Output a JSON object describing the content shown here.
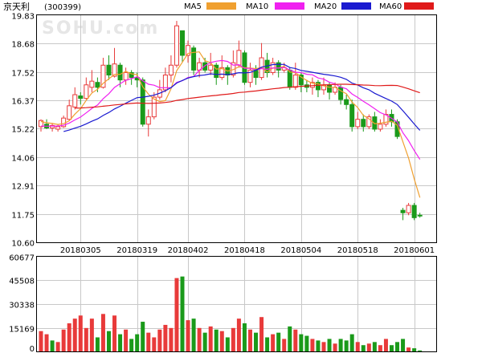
{
  "stock": {
    "name": "京天利",
    "code": "(300399)"
  },
  "watermark": "SOHU.com",
  "colors": {
    "up": "#e83a3a",
    "down": "#1a9a1a",
    "ma5": "#f0a030",
    "ma10": "#f020f0",
    "ma20": "#1a1ad0",
    "ma60": "#e01a1a",
    "grid": "#c8c8c8",
    "axis": "#000000"
  },
  "legend": [
    {
      "label": "MA5",
      "color": "#f0a030"
    },
    {
      "label": "MA10",
      "color": "#f020f0"
    },
    {
      "label": "MA20",
      "color": "#1a1ad0"
    },
    {
      "label": "MA60",
      "color": "#e01a1a"
    }
  ],
  "chart_data": [
    {
      "type": "candlestick",
      "title": "京天利 (300399)",
      "yticks": [
        "19.83",
        "18.68",
        "17.52",
        "16.37",
        "15.22",
        "14.06",
        "12.91",
        "11.75",
        "10.60"
      ],
      "ylim": [
        10.6,
        19.83
      ],
      "xticks": [
        {
          "label": "20180305",
          "index": 7
        },
        {
          "label": "20180319",
          "index": 17
        },
        {
          "label": "20180402",
          "index": 26
        },
        {
          "label": "20180418",
          "index": 36
        },
        {
          "label": "20180504",
          "index": 46
        },
        {
          "label": "20180518",
          "index": 56
        },
        {
          "label": "20180601",
          "index": 66
        }
      ],
      "grid": true,
      "candles": [
        [
          15.3,
          15.55,
          15.1,
          15.6
        ],
        [
          15.4,
          15.25,
          15.2,
          15.6
        ],
        [
          15.25,
          15.35,
          15.1,
          15.45
        ],
        [
          15.2,
          15.3,
          15.1,
          15.4
        ],
        [
          15.3,
          15.65,
          15.25,
          15.75
        ],
        [
          15.6,
          16.15,
          15.55,
          16.4
        ],
        [
          16.1,
          16.6,
          16.0,
          16.9
        ],
        [
          16.55,
          16.45,
          16.2,
          16.7
        ],
        [
          16.45,
          17.0,
          16.4,
          17.3
        ],
        [
          16.9,
          17.15,
          16.7,
          17.6
        ],
        [
          17.1,
          16.9,
          16.7,
          17.3
        ],
        [
          16.9,
          17.8,
          16.85,
          18.1
        ],
        [
          17.8,
          17.4,
          17.2,
          18.2
        ],
        [
          17.35,
          17.85,
          17.3,
          18.5
        ],
        [
          17.8,
          17.2,
          16.9,
          17.9
        ],
        [
          17.2,
          17.5,
          17.0,
          17.7
        ],
        [
          17.5,
          17.3,
          17.0,
          17.6
        ],
        [
          17.3,
          17.2,
          16.9,
          17.5
        ],
        [
          17.2,
          15.4,
          15.3,
          17.3
        ],
        [
          15.4,
          15.7,
          14.9,
          16.0
        ],
        [
          15.7,
          16.5,
          15.6,
          16.7
        ],
        [
          16.5,
          16.8,
          16.4,
          17.2
        ],
        [
          16.8,
          17.4,
          16.7,
          17.7
        ],
        [
          17.4,
          17.8,
          17.1,
          18.2
        ],
        [
          17.8,
          19.4,
          17.7,
          19.6
        ],
        [
          19.2,
          18.2,
          17.9,
          19.2
        ],
        [
          18.2,
          18.6,
          17.9,
          18.8
        ],
        [
          18.5,
          17.6,
          17.4,
          18.6
        ],
        [
          17.6,
          17.9,
          17.3,
          18.1
        ],
        [
          17.9,
          17.6,
          17.5,
          18.1
        ],
        [
          17.6,
          17.8,
          17.4,
          18.3
        ],
        [
          17.8,
          17.3,
          17.0,
          17.9
        ],
        [
          17.3,
          17.7,
          17.2,
          18.2
        ],
        [
          17.7,
          17.4,
          17.0,
          17.8
        ],
        [
          17.4,
          17.9,
          17.3,
          18.4
        ],
        [
          17.8,
          18.4,
          17.7,
          18.8
        ],
        [
          18.3,
          17.1,
          17.0,
          18.4
        ],
        [
          17.1,
          17.6,
          16.9,
          17.9
        ],
        [
          17.6,
          17.3,
          17.0,
          17.8
        ],
        [
          17.3,
          18.1,
          17.2,
          18.7
        ],
        [
          18.0,
          17.5,
          17.3,
          18.3
        ],
        [
          17.5,
          17.9,
          17.4,
          18.1
        ],
        [
          17.9,
          17.6,
          17.3,
          18.0
        ],
        [
          17.6,
          17.7,
          17.5,
          17.9
        ],
        [
          17.6,
          16.9,
          16.8,
          17.7
        ],
        [
          16.9,
          17.4,
          16.8,
          17.9
        ],
        [
          17.4,
          17.0,
          16.7,
          17.5
        ],
        [
          17.0,
          16.9,
          16.7,
          17.2
        ],
        [
          16.9,
          17.1,
          16.6,
          17.3
        ],
        [
          17.1,
          16.8,
          16.5,
          17.2
        ],
        [
          16.8,
          17.0,
          16.6,
          17.3
        ],
        [
          17.0,
          16.7,
          16.4,
          17.1
        ],
        [
          16.7,
          16.9,
          16.6,
          17.1
        ],
        [
          16.9,
          16.4,
          16.2,
          17.0
        ],
        [
          16.4,
          16.2,
          16.0,
          16.6
        ],
        [
          16.2,
          15.3,
          15.1,
          16.4
        ],
        [
          15.3,
          15.6,
          15.2,
          15.9
        ],
        [
          15.6,
          15.3,
          15.1,
          15.8
        ],
        [
          15.3,
          15.7,
          15.2,
          15.8
        ],
        [
          15.7,
          15.2,
          15.1,
          15.9
        ],
        [
          15.2,
          15.4,
          15.1,
          15.6
        ],
        [
          15.4,
          15.8,
          15.3,
          16.0
        ],
        [
          15.8,
          15.5,
          15.3,
          16.0
        ],
        [
          15.5,
          14.9,
          14.8,
          15.6
        ],
        [
          11.9,
          11.8,
          11.5,
          12.0
        ],
        [
          11.8,
          12.1,
          11.7,
          12.2
        ],
        [
          12.1,
          11.6,
          11.5,
          12.2
        ],
        [
          11.7,
          11.68,
          11.6,
          11.8
        ]
      ]
    },
    {
      "type": "bar",
      "title": "",
      "yticks": [
        "60677",
        "45508",
        "30338",
        "15169",
        "0"
      ],
      "ylim": [
        0,
        60677
      ],
      "values": [
        [
          13000,
          "up"
        ],
        [
          11000,
          "up"
        ],
        [
          7000,
          "down"
        ],
        [
          6000,
          "up"
        ],
        [
          14000,
          "up"
        ],
        [
          18000,
          "up"
        ],
        [
          21000,
          "up"
        ],
        [
          23000,
          "up"
        ],
        [
          15000,
          "up"
        ],
        [
          21000,
          "up"
        ],
        [
          9000,
          "down"
        ],
        [
          24000,
          "up"
        ],
        [
          13000,
          "down"
        ],
        [
          23000,
          "up"
        ],
        [
          11000,
          "down"
        ],
        [
          14000,
          "up"
        ],
        [
          8000,
          "down"
        ],
        [
          11000,
          "down"
        ],
        [
          19000,
          "down"
        ],
        [
          12000,
          "up"
        ],
        [
          9000,
          "up"
        ],
        [
          14000,
          "up"
        ],
        [
          17000,
          "up"
        ],
        [
          15000,
          "up"
        ],
        [
          47000,
          "up"
        ],
        [
          48000,
          "down"
        ],
        [
          20000,
          "up"
        ],
        [
          21000,
          "down"
        ],
        [
          15000,
          "up"
        ],
        [
          12000,
          "down"
        ],
        [
          16000,
          "up"
        ],
        [
          14000,
          "down"
        ],
        [
          13000,
          "up"
        ],
        [
          9000,
          "down"
        ],
        [
          15000,
          "up"
        ],
        [
          21000,
          "up"
        ],
        [
          18000,
          "down"
        ],
        [
          14000,
          "up"
        ],
        [
          12000,
          "down"
        ],
        [
          22000,
          "up"
        ],
        [
          9000,
          "down"
        ],
        [
          11000,
          "up"
        ],
        [
          12000,
          "down"
        ],
        [
          8000,
          "up"
        ],
        [
          16000,
          "down"
        ],
        [
          14000,
          "up"
        ],
        [
          11000,
          "down"
        ],
        [
          10000,
          "down"
        ],
        [
          8000,
          "up"
        ],
        [
          7000,
          "down"
        ],
        [
          6000,
          "up"
        ],
        [
          8000,
          "down"
        ],
        [
          5000,
          "up"
        ],
        [
          8000,
          "down"
        ],
        [
          7000,
          "down"
        ],
        [
          11000,
          "down"
        ],
        [
          6000,
          "up"
        ],
        [
          4000,
          "down"
        ],
        [
          5000,
          "up"
        ],
        [
          6000,
          "down"
        ],
        [
          4000,
          "up"
        ],
        [
          8000,
          "up"
        ],
        [
          4000,
          "down"
        ],
        [
          6000,
          "down"
        ],
        [
          8000,
          "down"
        ],
        [
          2500,
          "up"
        ],
        [
          2000,
          "down"
        ],
        [
          600,
          "down"
        ]
      ]
    }
  ]
}
